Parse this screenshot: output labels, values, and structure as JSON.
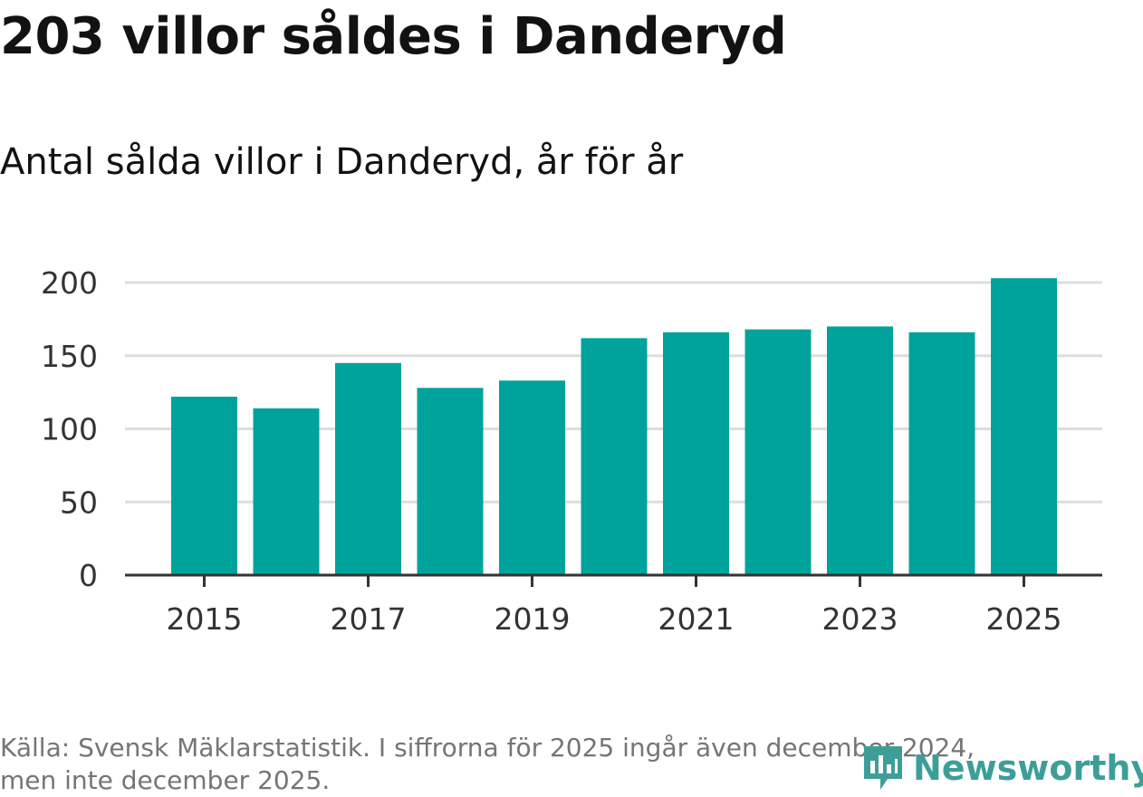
{
  "title": "203 villor såldes i Danderyd",
  "subtitle": "Antal sålda villor i Danderyd, år för år",
  "source": {
    "line1": "Källa: Svensk Mäklarstatistik. I siffrorna för 2025 ingår även december 2024,",
    "line2": "men inte december 2025."
  },
  "logo": {
    "text": "Newsworthy",
    "icon": "newsworthy-logo-icon"
  },
  "colors": {
    "bar": "#00a39b",
    "grid": "#dddddd",
    "axis": "#333333",
    "logo": "#3d9e99"
  },
  "chart_data": {
    "type": "bar",
    "title": "203 villor såldes i Danderyd",
    "subtitle": "Antal sålda villor i Danderyd, år för år",
    "xlabel": "",
    "ylabel": "",
    "categories": [
      "2015",
      "2016",
      "2017",
      "2018",
      "2019",
      "2020",
      "2021",
      "2022",
      "2023",
      "2024",
      "2025"
    ],
    "values": [
      122,
      114,
      145,
      128,
      133,
      162,
      166,
      168,
      170,
      166,
      203
    ],
    "ylim": [
      0,
      200
    ],
    "yticks": [
      0,
      50,
      100,
      150,
      200
    ],
    "xtick_labels": [
      "2015",
      "2017",
      "2019",
      "2021",
      "2023",
      "2025"
    ],
    "grid": true
  }
}
